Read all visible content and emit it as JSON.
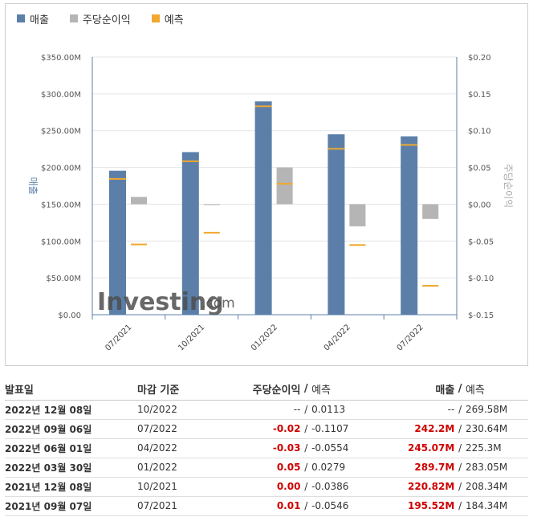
{
  "legend": [
    {
      "label": "매출",
      "color": "#5b7fa9"
    },
    {
      "label": "주당순이익",
      "color": "#b5b5b5"
    },
    {
      "label": "예측",
      "color": "#f0a830"
    }
  ],
  "chart_data": {
    "type": "bar",
    "categories": [
      "07/2021",
      "10/2021",
      "01/2022",
      "04/2022",
      "07/2022"
    ],
    "revenue": {
      "actual": [
        195.52,
        220.82,
        289.7,
        245.07,
        242.2
      ],
      "forecast": [
        184.34,
        208.34,
        283.05,
        225.3,
        230.64
      ]
    },
    "eps": {
      "actual": [
        0.01,
        0.0,
        0.05,
        -0.03,
        -0.02
      ],
      "forecast": [
        -0.0546,
        -0.0386,
        0.0279,
        -0.0554,
        -0.1107
      ]
    },
    "ylabel_left": "매출",
    "ylabel_right": "주당순이익",
    "left_axis": {
      "min": 0,
      "max": 350,
      "ticks": [
        "$0.00",
        "$50.00M",
        "$100.00M",
        "$150.00M",
        "$200.00M",
        "$250.00M",
        "$300.00M",
        "$350.00M"
      ]
    },
    "right_axis": {
      "min": -0.15,
      "max": 0.2,
      "ticks": [
        "$-0.15",
        "$-0.10",
        "$-0.05",
        "$0.00",
        "$0.05",
        "$0.10",
        "$0.15",
        "$0.20"
      ]
    },
    "watermark": {
      "text": "Investing",
      "suffix": ".com"
    }
  },
  "table": {
    "headers": {
      "date": "발표일",
      "period": "마감 기준",
      "eps": "주당순이익",
      "eps_sep": "/",
      "eps_forecast": "예측",
      "revenue": "매출",
      "rev_sep": "/",
      "rev_forecast": "예측"
    },
    "rows": [
      {
        "date": "2022년 12월 08일",
        "period": "10/2022",
        "eps": "--",
        "eps_forecast": "0.0113",
        "revenue": "--",
        "rev_forecast": "269.58M",
        "eps_red": false,
        "rev_red": false
      },
      {
        "date": "2022년 09월 06일",
        "period": "07/2022",
        "eps": "-0.02",
        "eps_forecast": "-0.1107",
        "revenue": "242.2M",
        "rev_forecast": "230.64M",
        "eps_red": true,
        "rev_red": true
      },
      {
        "date": "2022년 06월 01일",
        "period": "04/2022",
        "eps": "-0.03",
        "eps_forecast": "-0.0554",
        "revenue": "245.07M",
        "rev_forecast": "225.3M",
        "eps_red": true,
        "rev_red": true
      },
      {
        "date": "2022년 03월 30일",
        "period": "01/2022",
        "eps": "0.05",
        "eps_forecast": "0.0279",
        "revenue": "289.7M",
        "rev_forecast": "283.05M",
        "eps_red": true,
        "rev_red": true
      },
      {
        "date": "2021년 12월 08일",
        "period": "10/2021",
        "eps": "0.00",
        "eps_forecast": "-0.0386",
        "revenue": "220.82M",
        "rev_forecast": "208.34M",
        "eps_red": true,
        "rev_red": true
      },
      {
        "date": "2021년 09월 07일",
        "period": "07/2021",
        "eps": "0.01",
        "eps_forecast": "-0.0546",
        "revenue": "195.52M",
        "rev_forecast": "184.34M",
        "eps_red": true,
        "rev_red": true
      }
    ]
  }
}
